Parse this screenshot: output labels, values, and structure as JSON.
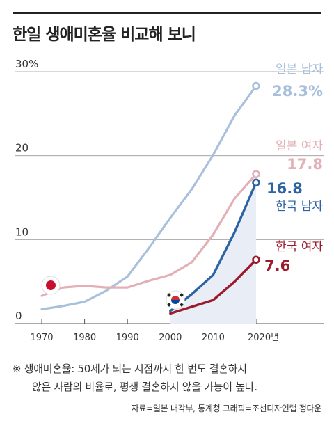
{
  "title": "한일 생애미혼율 비교해 보니",
  "note": {
    "mark": "※",
    "line1": "생애미혼율: 50세가 되는 시점까지 한 번도 결혼하지",
    "line2": "않은 사람의 비율로, 평생 결혼하지 않을 가능이 높다."
  },
  "source": "자료=일본 내각부, 통계청  그래픽=조선디자인랩 정다운",
  "colors": {
    "japan_male": "#a9c0dc",
    "japan_female": "#e2b0b6",
    "korea_male": "#2b63a3",
    "korea_female": "#9b1b2c",
    "area": "#e9eef6",
    "grid": "#888888"
  },
  "icons": {
    "japan": "japan-flag-icon",
    "korea": "korea-flag-icon"
  },
  "chart_data": {
    "type": "line",
    "title": "한일 생애미혼율 비교해 보니",
    "y_unit_label": "30%",
    "ylim": [
      0,
      30
    ],
    "xlim": [
      1970,
      2020
    ],
    "y_ticks": [
      {
        "value": 0,
        "label": "0"
      },
      {
        "value": 10,
        "label": "10"
      },
      {
        "value": 20,
        "label": "20"
      },
      {
        "value": 30,
        "label": "30%"
      }
    ],
    "x_ticks": [
      {
        "value": 1970,
        "label": "1970"
      },
      {
        "value": 1980,
        "label": "1980"
      },
      {
        "value": 1990,
        "label": "1990"
      },
      {
        "value": 2000,
        "label": "2000"
      },
      {
        "value": 2010,
        "label": "2010"
      },
      {
        "value": 2020,
        "label": "2020년"
      }
    ],
    "series": [
      {
        "name": "일본 남자",
        "value_label": "28.3%",
        "color": "#a9c0dc",
        "x": [
          1970,
          1975,
          1980,
          1985,
          1990,
          1995,
          2000,
          2005,
          2010,
          2015,
          2020
        ],
        "y": [
          1.7,
          2.1,
          2.6,
          3.9,
          5.6,
          9.0,
          12.6,
          16.0,
          20.1,
          24.8,
          28.3
        ]
      },
      {
        "name": "일본 여자",
        "value_label": "17.8",
        "color": "#e2b0b6",
        "x": [
          1970,
          1975,
          1980,
          1985,
          1990,
          1995,
          2000,
          2005,
          2010,
          2015,
          2020
        ],
        "y": [
          3.3,
          4.3,
          4.5,
          4.3,
          4.3,
          5.1,
          5.8,
          7.3,
          10.6,
          14.9,
          17.8
        ]
      },
      {
        "name": "한국 남자",
        "value_label": "16.8",
        "color": "#2b63a3",
        "x": [
          2000,
          2005,
          2010,
          2015,
          2020
        ],
        "y": [
          1.5,
          3.5,
          5.8,
          10.9,
          16.8
        ]
      },
      {
        "name": "한국 여자",
        "value_label": "7.6",
        "color": "#9b1b2c",
        "x": [
          2000,
          2005,
          2010,
          2015,
          2020
        ],
        "y": [
          1.2,
          2.0,
          2.8,
          5.0,
          7.6
        ]
      }
    ]
  }
}
